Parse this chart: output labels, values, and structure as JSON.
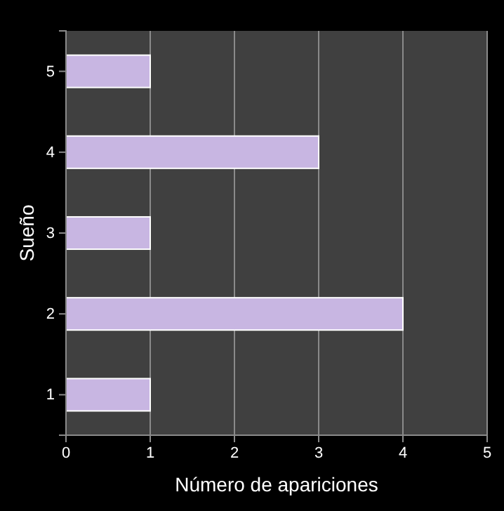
{
  "chart_data": {
    "type": "bar",
    "orientation": "horizontal",
    "xlabel": "Número  de apariciones",
    "ylabel": "Sueño",
    "categories": [
      "5",
      "4",
      "3",
      "2",
      "1"
    ],
    "values": [
      1,
      3,
      1,
      4,
      1
    ],
    "color": "#c8b6e2",
    "xlim": [
      0,
      5
    ],
    "xticks": [
      0,
      1,
      2,
      3,
      4,
      5
    ],
    "grid": "x"
  }
}
